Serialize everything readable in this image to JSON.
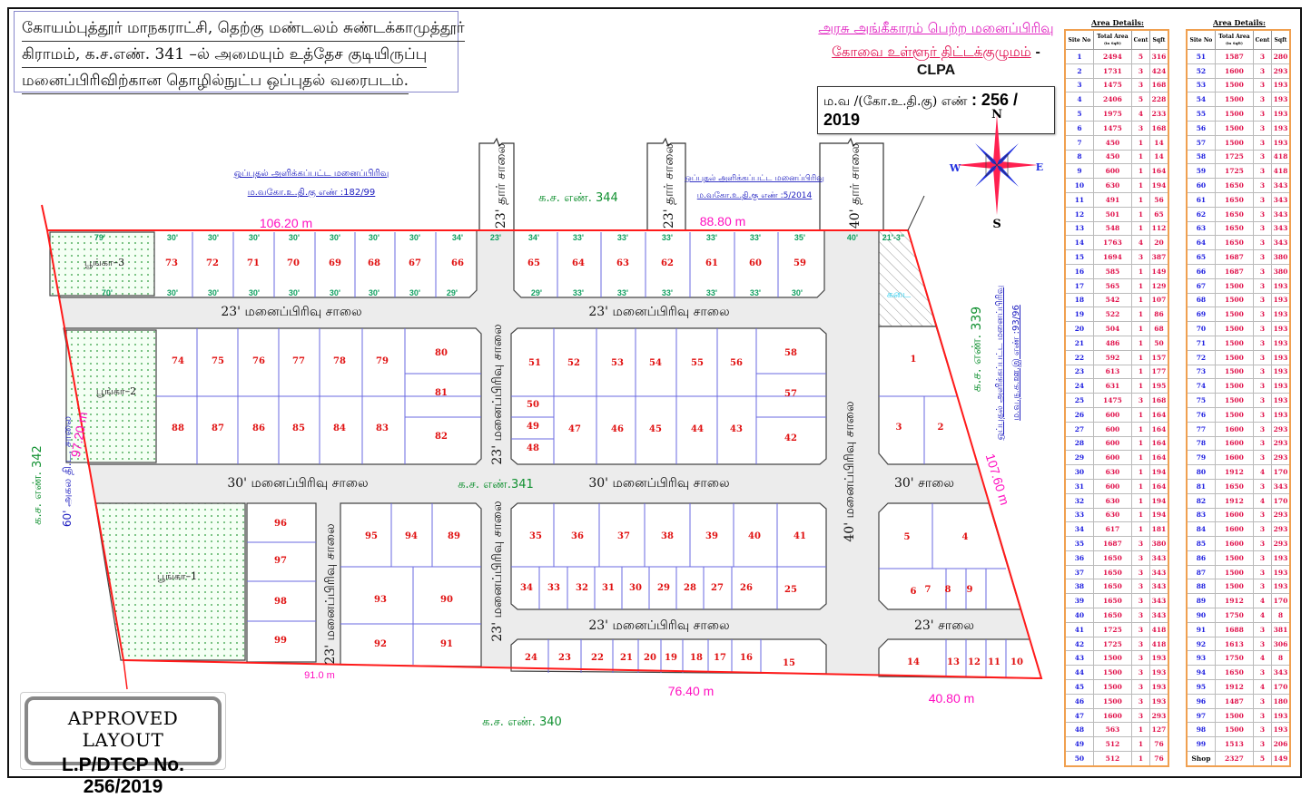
{
  "title_lines": [
    "கோயம்புத்தூர் மாநகராட்சி,  தெற்கு மண்டலம் சுண்டக்காமுத்தூர்",
    "கிராமம்,  க.ச.எண். 341 –ல் அமையும் உத்தேச குடியிருப்பு",
    "மனைப்பிரிவிற்கான தொழில்நுட்ப ஒப்புதல் வரைபடம்."
  ],
  "approval": {
    "line1": "அரசு அங்கீகாரம் பெற்ற மனைப்பிரிவு",
    "line2": "கோவை உள்ளூர் திட்டக்குழுமம்",
    "clpa": "- CLPA",
    "number_label": "ம.வ /(கோ.உ.தி.கு) எண்",
    "number_value": ": 256 / 2019"
  },
  "stamp": {
    "line1": "APPROVED LAYOUT",
    "line2": "L.P/DTCP No. 256/2019"
  },
  "compass": {
    "n": "N",
    "s": "S",
    "e": "E",
    "w": "W"
  },
  "colors": {
    "boundary": "#ff1a1a",
    "plot_number": "#e01010",
    "dimension": "#10a060",
    "length": "#ff10c0",
    "survey": "#109030",
    "note": "#2020c0"
  },
  "map": {
    "note_a1": "ஒப்புதல் அளிக்கப்பட்ட மனைப்பிரிவு",
    "note_a2": "ம.வகோ.உ.தி.கு எண் :182/99",
    "note_b1": "ஒப்புதல் அளிக்கப்பட்ட மனைப்பிரிவு",
    "note_b2": "ம.வகோ.உ.தி.கு எண் :5/2014",
    "note_c1": "ஒப்புதல் அளிக்கப்பட்ட மனைப்பிரிவு",
    "note_c2": "ம.வ.ந.க.ஊ.இ எண் :93/96",
    "sf_344": "க.ச. எண். 344",
    "sf_341": "க.ச. எண்.341",
    "sf_340": "க.ச. எண். 340",
    "sf_339": "க.ச. எண். 339",
    "sf_342": "க.ச. எண். 342",
    "road_60": "60' அகல தி.ட. சாலை",
    "len_top_left": "106.20 m",
    "len_top_right": "88.80 m",
    "len_left": "97.20 m",
    "len_right": "107.60 m",
    "len_bottom_left": "91.0 m",
    "len_bottom_mid": "76.40 m",
    "len_bottom_right": "40.80 m",
    "tar_road_1": "23' தார் சாலை",
    "tar_road_2": "23' தார் சாலை",
    "tar_road_3": "40' தார் சாலை",
    "road_h1_left": "23' மனைப்பிரிவு சாலை",
    "road_h1_right": "23' மனைப்பிரிவு சாலை",
    "road_h2_left": "30' மனைப்பிரிவு சாலை",
    "road_h2_right": "30' மனைப்பிரிவு சாலை",
    "road_h2_east": "30'  சாலை",
    "road_h3_mid": "23' மனைப்பிரிவு சாலை",
    "road_h3_east": "23'  சாலை",
    "road_v1_upper": "23' மனைப்பிரிவு சாலை",
    "road_v1_lower": "23' மனைப்பிரிவு சாலை",
    "road_v2": "40' மனைப்பிரிவு சாலை",
    "road_v3": "23' மனைப்பிரிவு சாலை",
    "park_1": "பூங்கா–1",
    "park_2": "பூங்கா–2",
    "park_3": "பூங்கா–3",
    "shop": "கடை"
  },
  "dims_top_row": {
    "a_top": [
      "79'",
      "30'",
      "30'",
      "30'",
      "30'",
      "30'",
      "30'",
      "30'",
      "34'",
      "23'"
    ],
    "a_bottom": [
      "70'",
      "30'",
      "30'",
      "30'",
      "30'",
      "30'",
      "30'",
      "30'",
      "29'"
    ],
    "b_top": [
      "34'",
      "33'",
      "33'",
      "33'",
      "33'",
      "33'",
      "35'",
      "40'",
      "21'-3\""
    ],
    "b_bottom": [
      "29'",
      "33'",
      "33'",
      "33'",
      "33'",
      "33'",
      "30'"
    ]
  },
  "plots": [
    "73",
    "72",
    "71",
    "70",
    "69",
    "68",
    "67",
    "66",
    "65",
    "64",
    "63",
    "62",
    "61",
    "60",
    "59",
    "74",
    "75",
    "76",
    "77",
    "78",
    "79",
    "80",
    "81",
    "88",
    "87",
    "86",
    "85",
    "84",
    "83",
    "82",
    "51",
    "52",
    "53",
    "54",
    "55",
    "56",
    "58",
    "57",
    "50",
    "49",
    "48",
    "47",
    "46",
    "45",
    "44",
    "43",
    "42",
    "1",
    "3",
    "2",
    "96",
    "97",
    "98",
    "99",
    "95",
    "94",
    "89",
    "93",
    "90",
    "92",
    "91",
    "35",
    "36",
    "37",
    "38",
    "39",
    "40",
    "41",
    "34",
    "33",
    "32",
    "31",
    "30",
    "29",
    "28",
    "27",
    "26",
    "25",
    "24",
    "23",
    "22",
    "21",
    "20",
    "19",
    "18",
    "17",
    "16",
    "15",
    "5",
    "4",
    "6",
    "7",
    "8",
    "9",
    "14",
    "13",
    "12",
    "11",
    "10"
  ],
  "area_details": {
    "heading": "Area Details:",
    "columns": [
      "Site No",
      "Total Area",
      "(in Sqft)",
      "Cent",
      "Sqft"
    ],
    "tables": [
      {
        "rows": [
          [
            "1",
            "2494",
            "5",
            "316"
          ],
          [
            "2",
            "1731",
            "3",
            "424"
          ],
          [
            "3",
            "1475",
            "3",
            "168"
          ],
          [
            "4",
            "2406",
            "5",
            "228"
          ],
          [
            "5",
            "1975",
            "4",
            "233"
          ],
          [
            "6",
            "1475",
            "3",
            "168"
          ],
          [
            "7",
            "450",
            "1",
            "14"
          ],
          [
            "8",
            "450",
            "1",
            "14"
          ],
          [
            "9",
            "600",
            "1",
            "164"
          ],
          [
            "10",
            "630",
            "1",
            "194"
          ],
          [
            "11",
            "491",
            "1",
            "56"
          ],
          [
            "12",
            "501",
            "1",
            "65"
          ],
          [
            "13",
            "548",
            "1",
            "112"
          ],
          [
            "14",
            "1763",
            "4",
            "20"
          ],
          [
            "15",
            "1694",
            "3",
            "387"
          ],
          [
            "16",
            "585",
            "1",
            "149"
          ],
          [
            "17",
            "565",
            "1",
            "129"
          ],
          [
            "18",
            "542",
            "1",
            "107"
          ],
          [
            "19",
            "522",
            "1",
            "86"
          ],
          [
            "20",
            "504",
            "1",
            "68"
          ],
          [
            "21",
            "486",
            "1",
            "50"
          ],
          [
            "22",
            "592",
            "1",
            "157"
          ],
          [
            "23",
            "613",
            "1",
            "177"
          ],
          [
            "24",
            "631",
            "1",
            "195"
          ],
          [
            "25",
            "1475",
            "3",
            "168"
          ],
          [
            "26",
            "600",
            "1",
            "164"
          ],
          [
            "27",
            "600",
            "1",
            "164"
          ],
          [
            "28",
            "600",
            "1",
            "164"
          ],
          [
            "29",
            "600",
            "1",
            "164"
          ],
          [
            "30",
            "630",
            "1",
            "194"
          ],
          [
            "31",
            "600",
            "1",
            "164"
          ],
          [
            "32",
            "630",
            "1",
            "194"
          ],
          [
            "33",
            "630",
            "1",
            "194"
          ],
          [
            "34",
            "617",
            "1",
            "181"
          ],
          [
            "35",
            "1687",
            "3",
            "380"
          ],
          [
            "36",
            "1650",
            "3",
            "343"
          ],
          [
            "37",
            "1650",
            "3",
            "343"
          ],
          [
            "38",
            "1650",
            "3",
            "343"
          ],
          [
            "39",
            "1650",
            "3",
            "343"
          ],
          [
            "40",
            "1650",
            "3",
            "343"
          ],
          [
            "41",
            "1725",
            "3",
            "418"
          ],
          [
            "42",
            "1725",
            "3",
            "418"
          ],
          [
            "43",
            "1500",
            "3",
            "193"
          ],
          [
            "44",
            "1500",
            "3",
            "193"
          ],
          [
            "45",
            "1500",
            "3",
            "193"
          ],
          [
            "46",
            "1500",
            "3",
            "193"
          ],
          [
            "47",
            "1600",
            "3",
            "293"
          ],
          [
            "48",
            "563",
            "1",
            "127"
          ],
          [
            "49",
            "512",
            "1",
            "76"
          ],
          [
            "50",
            "512",
            "1",
            "76"
          ]
        ]
      },
      {
        "rows": [
          [
            "51",
            "1587",
            "3",
            "280"
          ],
          [
            "52",
            "1600",
            "3",
            "293"
          ],
          [
            "53",
            "1500",
            "3",
            "193"
          ],
          [
            "54",
            "1500",
            "3",
            "193"
          ],
          [
            "55",
            "1500",
            "3",
            "193"
          ],
          [
            "56",
            "1500",
            "3",
            "193"
          ],
          [
            "57",
            "1500",
            "3",
            "193"
          ],
          [
            "58",
            "1725",
            "3",
            "418"
          ],
          [
            "59",
            "1725",
            "3",
            "418"
          ],
          [
            "60",
            "1650",
            "3",
            "343"
          ],
          [
            "61",
            "1650",
            "3",
            "343"
          ],
          [
            "62",
            "1650",
            "3",
            "343"
          ],
          [
            "63",
            "1650",
            "3",
            "343"
          ],
          [
            "64",
            "1650",
            "3",
            "343"
          ],
          [
            "65",
            "1687",
            "3",
            "380"
          ],
          [
            "66",
            "1687",
            "3",
            "380"
          ],
          [
            "67",
            "1500",
            "3",
            "193"
          ],
          [
            "68",
            "1500",
            "3",
            "193"
          ],
          [
            "69",
            "1500",
            "3",
            "193"
          ],
          [
            "70",
            "1500",
            "3",
            "193"
          ],
          [
            "71",
            "1500",
            "3",
            "193"
          ],
          [
            "72",
            "1500",
            "3",
            "193"
          ],
          [
            "73",
            "1500",
            "3",
            "193"
          ],
          [
            "74",
            "1500",
            "3",
            "193"
          ],
          [
            "75",
            "1500",
            "3",
            "193"
          ],
          [
            "76",
            "1500",
            "3",
            "193"
          ],
          [
            "77",
            "1600",
            "3",
            "293"
          ],
          [
            "78",
            "1600",
            "3",
            "293"
          ],
          [
            "79",
            "1600",
            "3",
            "293"
          ],
          [
            "80",
            "1912",
            "4",
            "170"
          ],
          [
            "81",
            "1650",
            "3",
            "343"
          ],
          [
            "82",
            "1912",
            "4",
            "170"
          ],
          [
            "83",
            "1600",
            "3",
            "293"
          ],
          [
            "84",
            "1600",
            "3",
            "293"
          ],
          [
            "85",
            "1600",
            "3",
            "293"
          ],
          [
            "86",
            "1500",
            "3",
            "193"
          ],
          [
            "87",
            "1500",
            "3",
            "193"
          ],
          [
            "88",
            "1500",
            "3",
            "193"
          ],
          [
            "89",
            "1912",
            "4",
            "170"
          ],
          [
            "90",
            "1750",
            "4",
            "8"
          ],
          [
            "91",
            "1688",
            "3",
            "381"
          ],
          [
            "92",
            "1613",
            "3",
            "306"
          ],
          [
            "93",
            "1750",
            "4",
            "8"
          ],
          [
            "94",
            "1650",
            "3",
            "343"
          ],
          [
            "95",
            "1912",
            "4",
            "170"
          ],
          [
            "96",
            "1487",
            "3",
            "180"
          ],
          [
            "97",
            "1500",
            "3",
            "193"
          ],
          [
            "98",
            "1500",
            "3",
            "193"
          ],
          [
            "99",
            "1513",
            "3",
            "206"
          ],
          [
            "Shop",
            "2327",
            "5",
            "149"
          ]
        ]
      }
    ]
  }
}
